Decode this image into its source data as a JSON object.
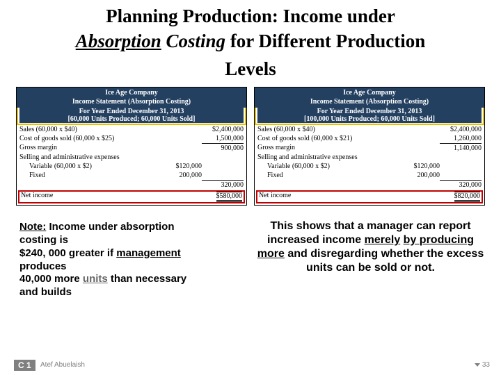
{
  "title": {
    "line1": "Planning Production:  Income under",
    "absorption": "Absorption",
    "costing": "Costing",
    "rest2": " for Different Production",
    "line3": "Levels"
  },
  "statements": [
    {
      "company": "Ice Age Company",
      "subtitle": "Income Statement (Absorption Costing)",
      "period": "For Year Ended December 31, 2013",
      "scenario": "[60,000 Units Produced; 60,000 Units Sold]",
      "rows": [
        {
          "label": "Sales (60,000 x $40)",
          "value": "$2,400,000"
        },
        {
          "label": "Cost of goods sold (60,000 x $25)",
          "value": "1,500,000"
        },
        {
          "label": "Gross margin",
          "value": "900,000",
          "topline": true
        },
        {
          "label": "Selling and administrative expenses",
          "value": ""
        },
        {
          "label": "Variable (60,000 x $2)",
          "value": "$120,000",
          "indent": true,
          "mid": true
        },
        {
          "label": "Fixed",
          "value": "200,000",
          "indent": true,
          "mid": true
        },
        {
          "label": "",
          "value": "320,000",
          "topline": true
        }
      ],
      "net": {
        "label": "Net income",
        "value": "$580,000"
      }
    },
    {
      "company": "Ice Age Company",
      "subtitle": "Income Statement (Absorption Costing)",
      "period": "For Year Ended December 31, 2013",
      "scenario": "[100,000 Units Produced; 60,000 Units Sold]",
      "rows": [
        {
          "label": "Sales (60,000 x $40)",
          "value": "$2,400,000"
        },
        {
          "label": "Cost of goods sold (60,000 x $21)",
          "value": "1,260,000"
        },
        {
          "label": "Gross margin",
          "value": "1,140,000",
          "topline": true
        },
        {
          "label": "Selling and administrative expenses",
          "value": ""
        },
        {
          "label": "Variable (60,000 x $2)",
          "value": "$120,000",
          "indent": true,
          "mid": true
        },
        {
          "label": "Fixed",
          "value": "200,000",
          "indent": true,
          "mid": true
        },
        {
          "label": "",
          "value": "320,000",
          "topline": true
        }
      ],
      "net": {
        "label": "Net income",
        "value": "$820,000"
      }
    }
  ],
  "note": {
    "label": "Note:",
    "l1": "   Income under absorption",
    "l2": "costing is",
    "l3a": "$240, 000 ",
    "greater": "greater",
    "l3b": " if ",
    "mgt": "management",
    "l4a": "produces ",
    "l5a": "40,000 more ",
    "more_units": "units",
    "l5b": " than necessary",
    "l6": "and builds"
  },
  "right": {
    "pre": "This shows that a manager can report increased income ",
    "merely": "merely",
    "mid": " ",
    "prod": "by producing more",
    "post": " and disregarding whether the excess units can be sold or not."
  },
  "badge": "C 1",
  "author": "Atef Abuelaish",
  "page": "33",
  "colors": {
    "header_bg": "#244061",
    "ybox_border": "#e6c200",
    "net_border": "#c00000",
    "badge_bg": "#808080"
  }
}
